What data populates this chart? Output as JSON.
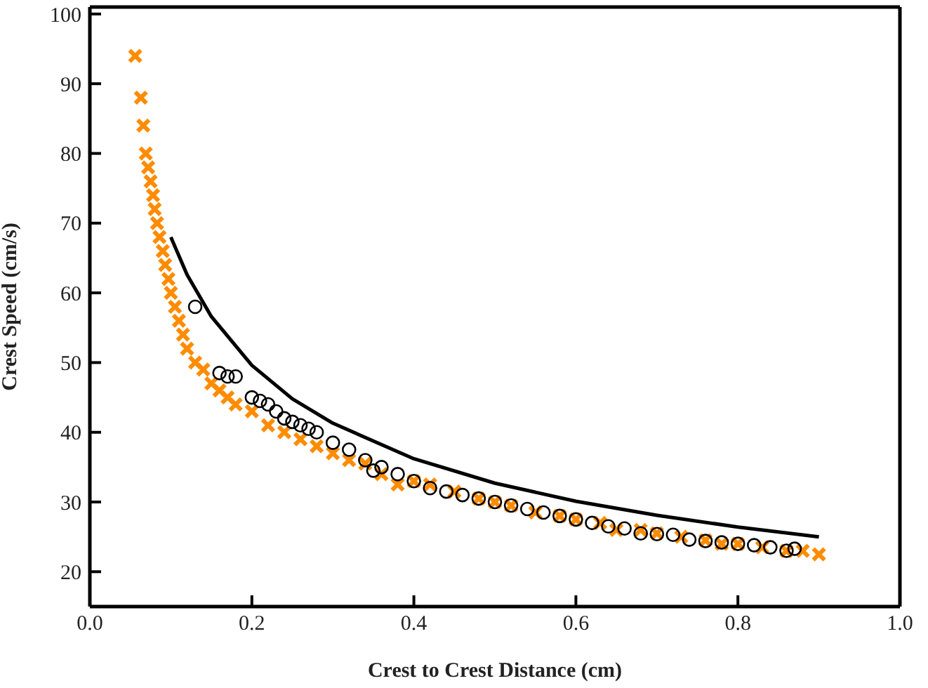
{
  "chart_data": {
    "type": "scatter",
    "xlabel": "Crest to Crest Distance (cm)",
    "ylabel": "Crest Speed (cm/s)",
    "xlim": [
      0,
      1
    ],
    "xticks": [
      {
        "value": 0,
        "label": "0.0"
      },
      0.2,
      0.4,
      0.6,
      0.8,
      {
        "value": 1,
        "label": "1.0"
      }
    ],
    "ylim": [
      15,
      101
    ],
    "yticks": [
      20,
      30,
      40,
      50,
      60,
      70,
      80,
      90,
      100
    ],
    "grid": false,
    "legend": false,
    "series": [
      {
        "type": "scatter",
        "marker": "cross",
        "color": "#ff8c00",
        "x": [
          0.056,
          0.063,
          0.066,
          0.069,
          0.072,
          0.075,
          0.078,
          0.08,
          0.083,
          0.086,
          0.09,
          0.093,
          0.097,
          0.1,
          0.105,
          0.11,
          0.115,
          0.12,
          0.13,
          0.14,
          0.15,
          0.16,
          0.17,
          0.18,
          0.2,
          0.22,
          0.24,
          0.26,
          0.28,
          0.3,
          0.32,
          0.34,
          0.36,
          0.38,
          0.4,
          0.42,
          0.45,
          0.48,
          0.5,
          0.52,
          0.55,
          0.58,
          0.6,
          0.63,
          0.65,
          0.68,
          0.7,
          0.73,
          0.76,
          0.78,
          0.8,
          0.83,
          0.86,
          0.88,
          0.9
        ],
        "values": [
          94,
          88,
          84,
          80,
          78,
          76,
          74,
          72,
          70,
          68,
          66,
          64,
          62,
          60,
          58,
          56,
          54,
          52,
          50,
          49,
          47,
          46,
          45,
          44,
          43,
          41,
          40,
          39,
          38,
          37,
          36,
          35.5,
          34,
          32.5,
          33,
          32.5,
          31.5,
          30.5,
          30,
          29.5,
          28.5,
          28,
          27.5,
          27,
          26,
          26,
          25.5,
          25,
          24.5,
          24,
          24,
          23.5,
          23,
          23,
          22.5
        ]
      },
      {
        "type": "scatter",
        "marker": "circle",
        "color": "#000000",
        "x": [
          0.13,
          0.16,
          0.17,
          0.18,
          0.2,
          0.21,
          0.22,
          0.23,
          0.24,
          0.25,
          0.26,
          0.27,
          0.28,
          0.3,
          0.32,
          0.34,
          0.35,
          0.36,
          0.38,
          0.4,
          0.42,
          0.44,
          0.46,
          0.48,
          0.5,
          0.52,
          0.54,
          0.56,
          0.58,
          0.6,
          0.62,
          0.64,
          0.66,
          0.68,
          0.7,
          0.72,
          0.74,
          0.76,
          0.78,
          0.8,
          0.82,
          0.84,
          0.86,
          0.87
        ],
        "values": [
          58,
          48.5,
          48,
          48,
          45,
          44.5,
          44,
          43,
          42,
          41.5,
          41,
          40.5,
          40,
          38.5,
          37.5,
          36,
          34.5,
          35,
          34,
          33,
          32,
          31.5,
          31,
          30.5,
          30,
          29.5,
          29,
          28.5,
          28,
          27.5,
          27,
          26.5,
          26.2,
          25.5,
          25.4,
          25.3,
          24.6,
          24.4,
          24.2,
          24,
          23.8,
          23.5,
          23,
          23.3
        ]
      },
      {
        "type": "line",
        "marker": "none",
        "color": "#000000",
        "x": [
          0.1,
          0.12,
          0.15,
          0.2,
          0.25,
          0.3,
          0.4,
          0.5,
          0.6,
          0.7,
          0.8,
          0.9
        ],
        "values": [
          68,
          62.6,
          56.6,
          49.6,
          44.8,
          41.3,
          36.2,
          32.7,
          30.1,
          28.1,
          26.4,
          25
        ]
      }
    ]
  }
}
